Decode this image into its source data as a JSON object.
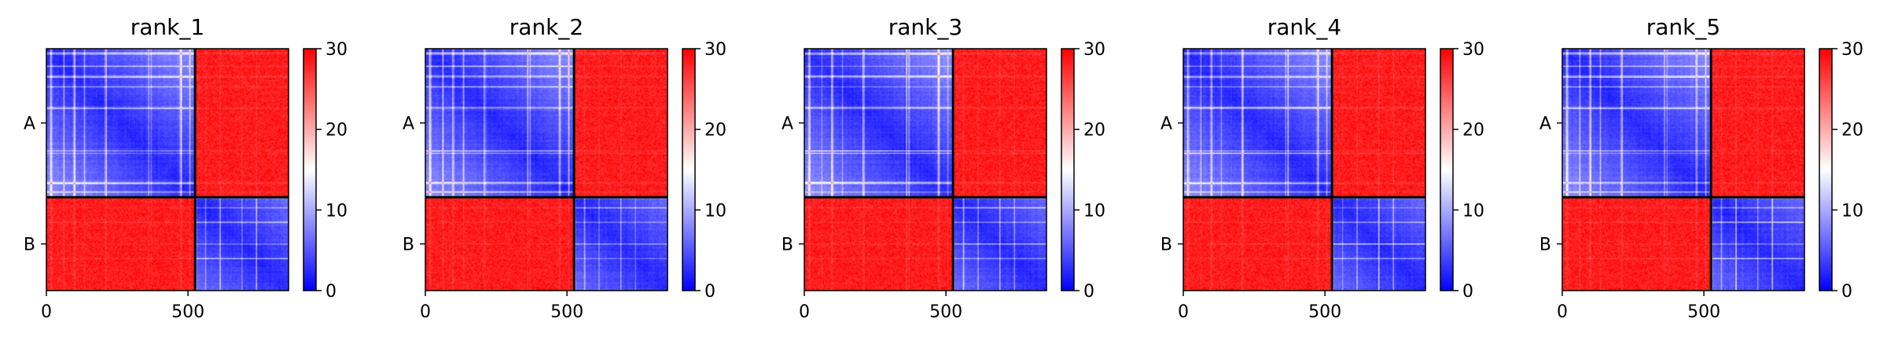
{
  "chart_data": {
    "type": "heatmap",
    "colormap": {
      "name": "bwr",
      "low": "#0000ff",
      "mid": "#ffffff",
      "high": "#ff0000"
    },
    "clim": [
      0,
      30
    ],
    "colorbar_ticks": [
      "0",
      "10",
      "20",
      "30"
    ],
    "x_ticks": [
      "0",
      "500"
    ],
    "chain_labels": [
      "A",
      "B"
    ],
    "chain_boundary": 525,
    "total_length": 855,
    "panels": [
      {
        "title": "rank_1"
      },
      {
        "title": "rank_2"
      },
      {
        "title": "rank_3"
      },
      {
        "title": "rank_4"
      },
      {
        "title": "rank_5"
      }
    ]
  }
}
